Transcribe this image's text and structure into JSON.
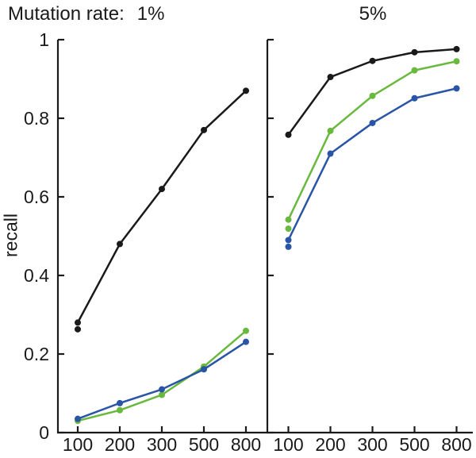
{
  "header": {
    "prefix": "Mutation rate:"
  },
  "axis_color": "#1a1a1a",
  "chart_data": [
    {
      "type": "line",
      "title": "1%",
      "ylabel": "recall",
      "categories": [
        "100",
        "200",
        "300",
        "500",
        "800"
      ],
      "ylim": [
        0,
        1
      ],
      "ytick_values": [
        0,
        0.2,
        0.4,
        0.6,
        0.8,
        1
      ],
      "ytick_labels": [
        "0",
        "0.2",
        "0.4",
        "0.6",
        "0.8",
        "1"
      ],
      "grid": false,
      "legend": "none",
      "series": [
        {
          "name": "black",
          "color": "#1a1a1a",
          "values": [
            0.28,
            0.48,
            0.62,
            0.77,
            0.87
          ]
        },
        {
          "name": "green",
          "color": "#69b93e",
          "values": [
            0.03,
            0.057,
            0.096,
            0.168,
            0.259
          ]
        },
        {
          "name": "blue",
          "color": "#2a55a6",
          "values": [
            0.035,
            0.075,
            0.11,
            0.161,
            0.231
          ]
        }
      ],
      "extra_points": [
        {
          "series": "black",
          "category": "100",
          "value": 0.263
        }
      ]
    },
    {
      "type": "line",
      "title": "5%",
      "ylabel": "",
      "categories": [
        "100",
        "200",
        "300",
        "500",
        "800"
      ],
      "ylim": [
        0,
        1
      ],
      "ytick_values": [
        0,
        0.2,
        0.4,
        0.6,
        0.8,
        1
      ],
      "ytick_labels": [
        "0",
        "0.2",
        "0.4",
        "0.6",
        "0.8",
        "1"
      ],
      "grid": false,
      "legend": "none",
      "series": [
        {
          "name": "black",
          "color": "#1a1a1a",
          "values": [
            0.758,
            0.905,
            0.946,
            0.968,
            0.976
          ]
        },
        {
          "name": "green",
          "color": "#69b93e",
          "values": [
            0.542,
            0.768,
            0.857,
            0.922,
            0.945
          ]
        },
        {
          "name": "blue",
          "color": "#2a55a6",
          "values": [
            0.49,
            0.71,
            0.788,
            0.851,
            0.876
          ]
        }
      ],
      "extra_points": [
        {
          "series": "green",
          "category": "100",
          "value": 0.519
        },
        {
          "series": "blue",
          "category": "100",
          "value": 0.473
        }
      ]
    }
  ]
}
